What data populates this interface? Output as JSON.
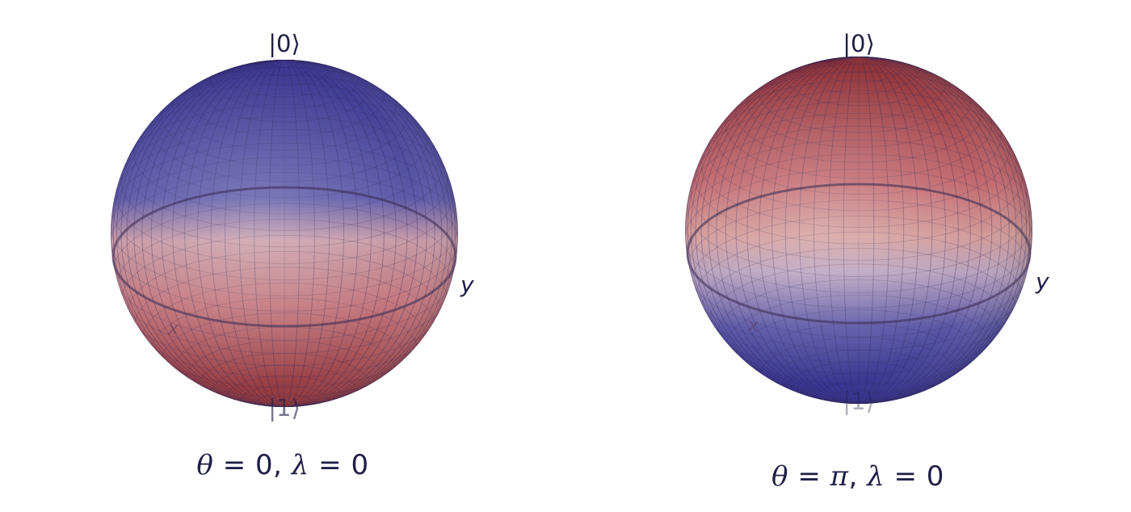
{
  "panels": [
    {
      "id": "left",
      "ket_top": "|0⟩",
      "ket_bottom": "|1⟩",
      "y_axis": "y",
      "x_axis": "x",
      "theta_symbol": "θ",
      "theta_value": "0",
      "lambda_symbol": "λ",
      "lambda_value": "0",
      "colors": {
        "top": "#3a3590",
        "equator": "#c79aa6",
        "bottom": "#8c2f34"
      }
    },
    {
      "id": "right",
      "ket_top": "|0⟩",
      "ket_bottom": "|1⟩",
      "y_axis": "y",
      "x_axis": "x",
      "theta_symbol": "θ",
      "theta_value": "π",
      "lambda_symbol": "λ",
      "lambda_value": "0",
      "colors": {
        "top": "#8c2f34",
        "equator": "#b9a2be",
        "bottom": "#2e2a8a"
      }
    }
  ]
}
